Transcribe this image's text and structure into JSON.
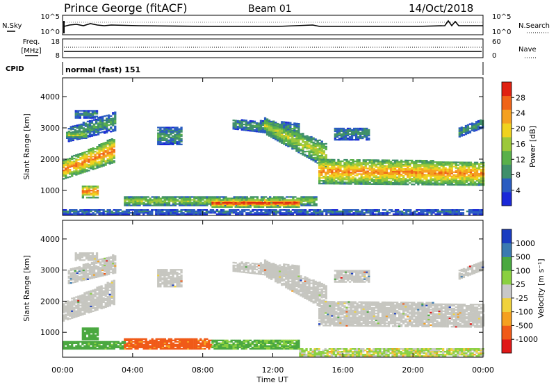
{
  "header": {
    "station": "Prince George (fitACF)",
    "beam": "Beam 01",
    "date": "14/Oct/2018"
  },
  "summary_panels": {
    "noise": {
      "left_label": "N.Sky",
      "left_ticks": [
        "10^5",
        "10^0"
      ],
      "right_label": "N.Search",
      "right_ticks": [
        "10^5",
        "10^0"
      ]
    },
    "freq": {
      "left_label_1": "Freq.",
      "left_label_2": "[MHz]",
      "left_ticks": [
        "18",
        "8"
      ],
      "right_label": "Nave",
      "right_ticks": [
        "60",
        "0"
      ]
    },
    "cpid": {
      "label": "CPID",
      "text": "normal (fast) 151"
    }
  },
  "x_axis": {
    "ticks": [
      "00:00",
      "04:00",
      "08:00",
      "12:00",
      "16:00",
      "20:00",
      "00:00"
    ],
    "label": "Time UT"
  },
  "colors": {
    "power_scale": [
      "#1a28d8",
      "#2a5cc0",
      "#3f8f6a",
      "#5ab04a",
      "#9cc83a",
      "#f0d21e",
      "#f5a020",
      "#f06418",
      "#e02010"
    ],
    "velocity_scale": [
      "#e01818",
      "#f05a18",
      "#f5a020",
      "#f0d23c",
      "#c8c8c8",
      "#8ad040",
      "#4aa840",
      "#3a7ab0",
      "#1a3cc0"
    ],
    "ground_scatter": "#c6c6c0"
  },
  "chart_data": [
    {
      "type": "heatmap",
      "name": "power",
      "ylabel": "Slant Range [km]",
      "yticks": [
        "1000",
        "2000",
        "3000",
        "4000"
      ],
      "ylim": [
        200,
        4600
      ],
      "xlim_hours": [
        0,
        24
      ],
      "colorbar": {
        "label": "Power [dB]",
        "ticks": [
          "4",
          "8",
          "12",
          "16",
          "20",
          "24",
          "28"
        ],
        "range": [
          0,
          32
        ]
      },
      "regions": [
        {
          "t0": 0.0,
          "t1": 3.0,
          "r0_start": 1350,
          "r1_start": 1950,
          "r0_end": 1900,
          "r1_end": 2700,
          "value": 22
        },
        {
          "t0": 0.3,
          "t1": 3.0,
          "r0_start": 2550,
          "r1_start": 3000,
          "r0_end": 2900,
          "r1_end": 3500,
          "value": 9
        },
        {
          "t0": 0.2,
          "t1": 1.4,
          "r0_start": 2650,
          "r1_start": 2850,
          "r0_end": 2650,
          "r1_end": 2850,
          "value": 14
        },
        {
          "t0": 0.7,
          "t1": 2.0,
          "r0_start": 3300,
          "r1_start": 3550,
          "r0_end": 3300,
          "r1_end": 3550,
          "value": 8
        },
        {
          "t0": 1.1,
          "t1": 2.0,
          "r0_start": 750,
          "r1_start": 1150,
          "r0_end": 750,
          "r1_end": 1150,
          "value": 22
        },
        {
          "t0": 5.4,
          "t1": 6.8,
          "r0_start": 2450,
          "r1_start": 3000,
          "r0_end": 2450,
          "r1_end": 3000,
          "value": 9
        },
        {
          "t0": 9.7,
          "t1": 13.5,
          "r0_start": 2950,
          "r1_start": 3250,
          "r0_end": 2700,
          "r1_end": 3150,
          "value": 9
        },
        {
          "t0": 11.5,
          "t1": 15.0,
          "r0_start": 2800,
          "r1_start": 3300,
          "r0_end": 1700,
          "r1_end": 2500,
          "value": 15
        },
        {
          "t0": 14.6,
          "t1": 24.0,
          "r0_start": 1200,
          "r1_start": 2000,
          "r0_end": 1150,
          "r1_end": 1900,
          "value": 21
        },
        {
          "t0": 15.5,
          "t1": 17.5,
          "r0_start": 2600,
          "r1_start": 3000,
          "r0_end": 2600,
          "r1_end": 3000,
          "value": 8
        },
        {
          "t0": 22.6,
          "t1": 24.0,
          "r0_start": 2700,
          "r1_start": 3000,
          "r0_end": 3000,
          "r1_end": 3300,
          "value": 9
        },
        {
          "t0": 3.5,
          "t1": 14.5,
          "r0_start": 500,
          "r1_start": 800,
          "r0_end": 500,
          "r1_end": 800,
          "value": 14
        },
        {
          "t0": 8.5,
          "t1": 13.5,
          "r0_start": 450,
          "r1_start": 700,
          "r0_end": 450,
          "r1_end": 700,
          "value": 26
        },
        {
          "t0": 0.0,
          "t1": 24.0,
          "r0_start": 220,
          "r1_start": 380,
          "r0_end": 220,
          "r1_end": 380,
          "value": 6
        }
      ]
    },
    {
      "type": "heatmap",
      "name": "velocity",
      "ylabel": "Slant Range [km]",
      "yticks": [
        "1000",
        "2000",
        "3000",
        "4000"
      ],
      "ylim": [
        200,
        4600
      ],
      "xlim_hours": [
        0,
        24
      ],
      "colorbar": {
        "label": "Velocity [m s⁻¹]",
        "ticks": [
          "1000",
          "500",
          "100",
          "25",
          "-25",
          "-100",
          "-500",
          "-1000"
        ]
      },
      "regions": [
        {
          "t0": 0.0,
          "t1": 3.0,
          "r0_start": 1350,
          "r1_start": 1950,
          "r0_end": 1900,
          "r1_end": 2700,
          "value": "gs"
        },
        {
          "t0": 0.3,
          "t1": 3.0,
          "r0_start": 2550,
          "r1_start": 3000,
          "r0_end": 2900,
          "r1_end": 3500,
          "value": "gs"
        },
        {
          "t0": 0.7,
          "t1": 2.0,
          "r0_start": 3300,
          "r1_start": 3550,
          "r0_end": 3300,
          "r1_end": 3550,
          "value": "gs"
        },
        {
          "t0": 1.1,
          "t1": 2.0,
          "r0_start": 750,
          "r1_start": 1150,
          "r0_end": 750,
          "r1_end": 1150,
          "value": 200
        },
        {
          "t0": 5.4,
          "t1": 6.8,
          "r0_start": 2450,
          "r1_start": 3000,
          "r0_end": 2450,
          "r1_end": 3000,
          "value": "gs"
        },
        {
          "t0": 9.7,
          "t1": 13.5,
          "r0_start": 2950,
          "r1_start": 3250,
          "r0_end": 2700,
          "r1_end": 3150,
          "value": "gs"
        },
        {
          "t0": 11.5,
          "t1": 15.0,
          "r0_start": 2800,
          "r1_start": 3300,
          "r0_end": 1700,
          "r1_end": 2500,
          "value": "gs"
        },
        {
          "t0": 14.6,
          "t1": 24.0,
          "r0_start": 1200,
          "r1_start": 2000,
          "r0_end": 1150,
          "r1_end": 1900,
          "value": "gs"
        },
        {
          "t0": 15.5,
          "t1": 17.5,
          "r0_start": 2600,
          "r1_start": 3000,
          "r0_end": 2600,
          "r1_end": 3000,
          "value": "gs"
        },
        {
          "t0": 22.6,
          "t1": 24.0,
          "r0_start": 2700,
          "r1_start": 3000,
          "r0_end": 3000,
          "r1_end": 3300,
          "value": "gs"
        },
        {
          "t0": 0.0,
          "t1": 3.5,
          "r0_start": 450,
          "r1_start": 700,
          "r0_end": 450,
          "r1_end": 700,
          "value": 150
        },
        {
          "t0": 3.5,
          "t1": 8.5,
          "r0_start": 450,
          "r1_start": 800,
          "r0_end": 450,
          "r1_end": 800,
          "value": -150
        },
        {
          "t0": 8.5,
          "t1": 13.5,
          "r0_start": 450,
          "r1_start": 750,
          "r0_end": 450,
          "r1_end": 750,
          "value": 120
        },
        {
          "t0": 13.5,
          "t1": 24.0,
          "r0_start": 220,
          "r1_start": 450,
          "r0_end": 220,
          "r1_end": 450,
          "value": 30
        }
      ]
    }
  ]
}
